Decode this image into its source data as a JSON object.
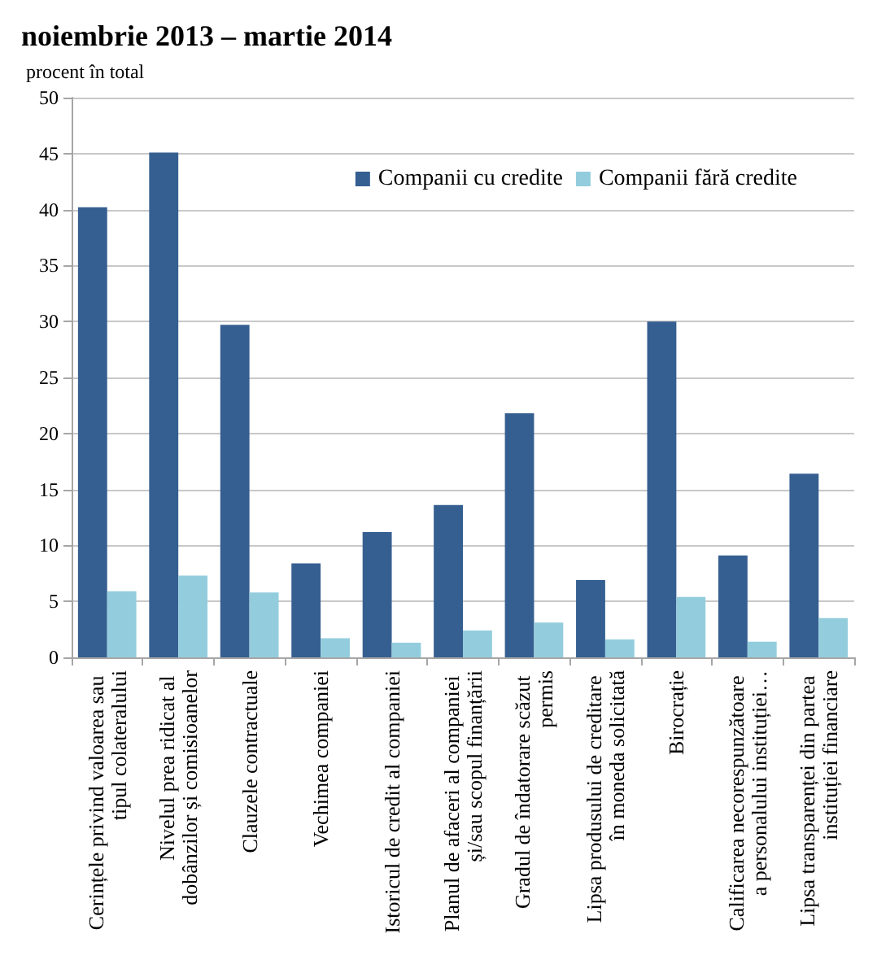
{
  "chart_data": {
    "type": "bar",
    "title": "noiembrie 2013 – martie 2014",
    "ylabel": "procent în total",
    "categories": [
      "Cerințele privind valoarea sau tipul colateralului",
      "Nivelul prea ridicat al dobânzilor și comisioanelor",
      "Clauzele contractuale",
      "Vechimea companiei",
      "Istoricul de credit al companiei",
      "Planul de afaceri al companiei și/sau scopul finanțării",
      "Gradul de îndatorare scăzut permis",
      "Lipsa produsului de creditare în moneda solicitată",
      "Birocrație",
      "Calificarea necorespunzătoare a personalului instituției…",
      "Lipsa transparenței din partea instituției financiare"
    ],
    "series": [
      {
        "name": "Companii cu credite",
        "color": "#365f91",
        "values": [
          40.2,
          45.1,
          29.7,
          8.4,
          11.2,
          13.6,
          21.8,
          6.9,
          30.0,
          9.1,
          16.4
        ]
      },
      {
        "name": "Companii fără credite",
        "color": "#93cddd",
        "values": [
          5.9,
          7.3,
          5.8,
          1.7,
          1.3,
          2.4,
          3.1,
          1.6,
          5.4,
          1.4,
          3.5
        ]
      }
    ],
    "ylim": [
      0,
      50
    ],
    "yticks": [
      0,
      5,
      10,
      15,
      20,
      25,
      30,
      35,
      40,
      45,
      50
    ],
    "grid": "y",
    "legend": "top right"
  }
}
